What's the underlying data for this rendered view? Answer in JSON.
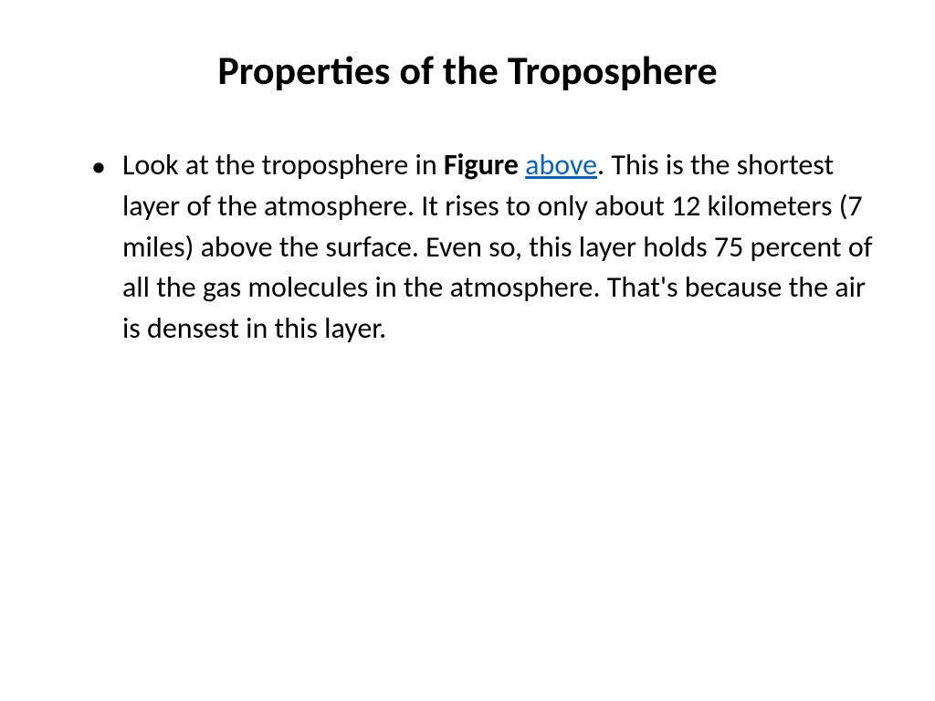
{
  "slide": {
    "title": "Properties of the Troposphere",
    "title_fontsize": 44,
    "title_fontweight": 700,
    "title_color": "#000000",
    "background_color": "#ffffff",
    "bullet": {
      "char": "•",
      "text_before_bold": "Look at the troposphere in ",
      "bold_word": "Figure",
      "space_after_bold": " ",
      "link_text": "above",
      "text_after_link": ". This is the shortest layer of the atmosphere. It rises to only about 12 kilometers (7 miles) above the surface. Even so, this layer holds 75 percent of all the gas molecules in the atmosphere. That's because the air is densest in this layer.",
      "body_fontsize": 32,
      "body_color": "#000000",
      "link_color": "#0563c1"
    }
  }
}
